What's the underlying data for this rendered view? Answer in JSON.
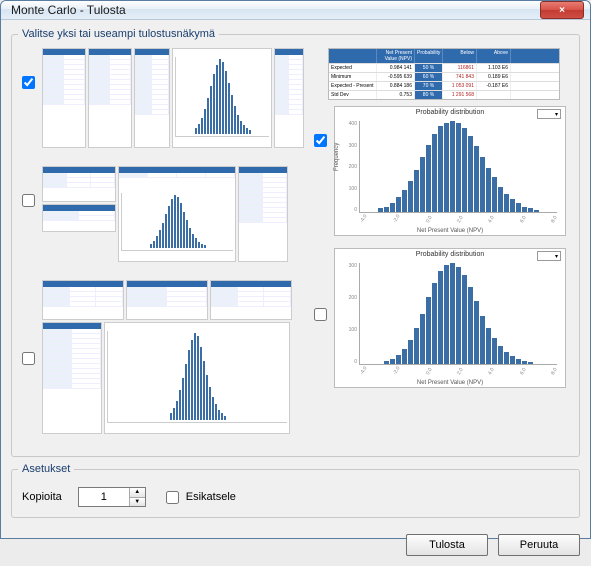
{
  "window": {
    "title": "Monte Carlo - Tulosta",
    "close_icon": "×"
  },
  "views": {
    "legend": "Valitse yksi tai useampi tulostusnäkymä",
    "checkboxes": {
      "view1": true,
      "view2": false,
      "view3": false,
      "view4": true,
      "view5": false
    },
    "stats_table": {
      "header": {
        "h1": "",
        "h2": "Net Present Value (NPV)",
        "h3": "Probability",
        "h4": "Below",
        "h5": "Above"
      },
      "rows": [
        {
          "c1": "Expected",
          "c2": "0.984 141",
          "c3": "50 %",
          "c4": "116861",
          "c5": "1.103 E6"
        },
        {
          "c1": "Minimum",
          "c2": "-0.595 639",
          "c3": "60 %",
          "c4": "741 843",
          "c5": "0.189 E6"
        },
        {
          "c1": "Expected - Present",
          "c2": "0.884 186",
          "c3": "70 %",
          "c4": "1 053 091",
          "c5": "-0.187 E6"
        },
        {
          "c1": "Std Dev",
          "c2": "0.753",
          "c3": "80 %",
          "c4": "1 291 568",
          "c5": ""
        }
      ]
    },
    "chart1": {
      "title": "Probability distribution",
      "ylabel": "Frequency",
      "xlabel": "Net Present Value (NPV)",
      "dropdown": "▾",
      "yticks": [
        "400",
        "300",
        "200",
        "100",
        "0"
      ],
      "xticks": [
        "-4.0",
        "-2.0",
        "0.0",
        "2.0",
        "4.0",
        "6.0",
        "8.0"
      ],
      "bars": [
        4,
        6,
        10,
        16,
        24,
        34,
        46,
        60,
        74,
        86,
        94,
        98,
        100,
        98,
        92,
        84,
        72,
        60,
        48,
        38,
        28,
        20,
        14,
        10,
        6,
        4,
        2
      ]
    },
    "chart2": {
      "title": "Probability distribution",
      "ylabel": "",
      "xlabel": "Net Present Value (NPV)",
      "dropdown": "▾",
      "yticks": [
        "300",
        "200",
        "100",
        "0"
      ],
      "xticks": [
        "-4.0",
        "-2.0",
        "0.0",
        "2.0",
        "4.0",
        "6.0",
        "8.0"
      ],
      "bars": [
        3,
        5,
        9,
        15,
        24,
        36,
        50,
        66,
        80,
        92,
        98,
        100,
        96,
        88,
        76,
        62,
        48,
        36,
        26,
        18,
        12,
        8,
        5,
        3,
        2
      ]
    },
    "mini_bars": [
      8,
      14,
      22,
      34,
      48,
      64,
      80,
      92,
      100,
      96,
      84,
      68,
      52,
      38,
      26,
      18,
      12,
      8,
      5
    ]
  },
  "settings": {
    "legend": "Asetukset",
    "copies_label": "Kopioita",
    "copies_value": "1",
    "preview_label": "Esikatsele",
    "preview_checked": false
  },
  "footer": {
    "print": "Tulosta",
    "cancel": "Peruuta"
  },
  "colors": {
    "bar": "#3b6ea5",
    "header": "#2f6aad"
  }
}
